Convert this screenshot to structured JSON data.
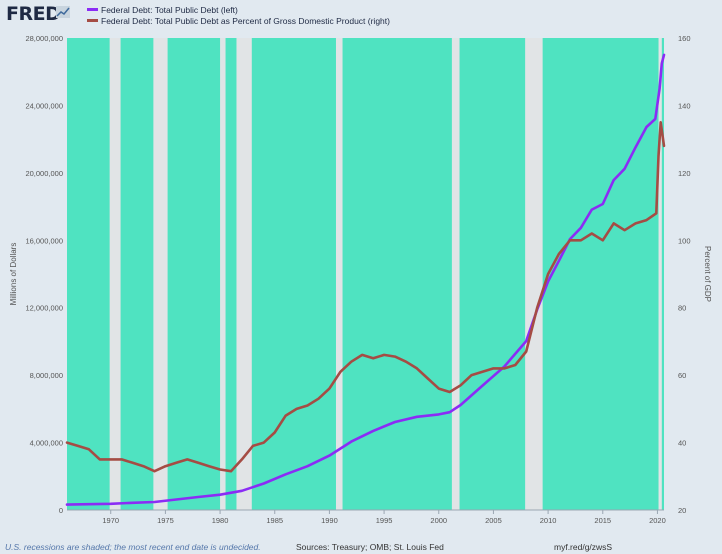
{
  "header": {
    "logo_text": "FRED",
    "logo_icon": "line-chart-icon"
  },
  "chart_data": {
    "type": "line",
    "x_range": [
      1966.0,
      2020.6
    ],
    "x_ticks": [
      1970,
      1975,
      1980,
      1985,
      1990,
      1995,
      2000,
      2005,
      2010,
      2015,
      2020
    ],
    "y_left": {
      "label": "Millions of Dollars",
      "range": [
        0,
        28000000
      ],
      "ticks": [
        0,
        4000000,
        8000000,
        12000000,
        16000000,
        20000000,
        24000000,
        28000000
      ],
      "tick_labels": [
        "0",
        "4,000,000",
        "8,000,000",
        "12,000,000",
        "16,000,000",
        "20,000,000",
        "24,000,000",
        "28,000,000"
      ]
    },
    "y_right": {
      "label": "Percent of GDP",
      "range": [
        20,
        160
      ],
      "ticks": [
        20,
        40,
        60,
        80,
        100,
        120,
        140,
        160
      ]
    },
    "grid": false,
    "legend_position": "top-left",
    "recessions_shaded": true,
    "plot_background": "#4fe3c1",
    "recession_color": "#e1e4e6",
    "recessions": [
      [
        1969.9,
        1970.9
      ],
      [
        1973.9,
        1975.2
      ],
      [
        1980.0,
        1980.5
      ],
      [
        1981.5,
        1982.9
      ],
      [
        1990.6,
        1991.2
      ],
      [
        2001.2,
        2001.9
      ],
      [
        2007.9,
        2009.5
      ],
      [
        2020.1,
        2020.4
      ]
    ],
    "series": [
      {
        "name": "Federal Debt: Total Public Debt (left)",
        "axis": "left",
        "color": "#8b2cf5",
        "points": [
          [
            1966,
            320000
          ],
          [
            1968,
            345000
          ],
          [
            1970,
            370000
          ],
          [
            1972,
            425000
          ],
          [
            1974,
            475000
          ],
          [
            1976,
            620000
          ],
          [
            1978,
            770000
          ],
          [
            1980,
            908000
          ],
          [
            1982,
            1140000
          ],
          [
            1984,
            1570000
          ],
          [
            1986,
            2120000
          ],
          [
            1988,
            2600000
          ],
          [
            1990,
            3230000
          ],
          [
            1992,
            4060000
          ],
          [
            1994,
            4690000
          ],
          [
            1996,
            5220000
          ],
          [
            1998,
            5530000
          ],
          [
            2000,
            5670000
          ],
          [
            2001,
            5800000
          ],
          [
            2002,
            6230000
          ],
          [
            2004,
            7380000
          ],
          [
            2006,
            8510000
          ],
          [
            2008,
            10020000
          ],
          [
            2009,
            11900000
          ],
          [
            2010,
            13560000
          ],
          [
            2011,
            14790000
          ],
          [
            2012,
            16070000
          ],
          [
            2013,
            16740000
          ],
          [
            2014,
            17820000
          ],
          [
            2015,
            18150000
          ],
          [
            2016,
            19570000
          ],
          [
            2017,
            20240000
          ],
          [
            2018,
            21520000
          ],
          [
            2019,
            22720000
          ],
          [
            2019.8,
            23200000
          ],
          [
            2020.2,
            25000000
          ],
          [
            2020.4,
            26500000
          ],
          [
            2020.6,
            27000000
          ]
        ]
      },
      {
        "name": "Federal Debt: Total Public Debt as Percent of Gross Domestic Product (right)",
        "axis": "right",
        "color": "#a54c44",
        "points": [
          [
            1966,
            40
          ],
          [
            1967,
            39
          ],
          [
            1968,
            38
          ],
          [
            1969,
            35
          ],
          [
            1970,
            35
          ],
          [
            1971,
            35
          ],
          [
            1972,
            34
          ],
          [
            1973,
            33
          ],
          [
            1974,
            31.5
          ],
          [
            1975,
            33
          ],
          [
            1976,
            34
          ],
          [
            1977,
            35
          ],
          [
            1978,
            34
          ],
          [
            1979,
            33
          ],
          [
            1980,
            32
          ],
          [
            1981,
            31.5
          ],
          [
            1982,
            35
          ],
          [
            1983,
            39
          ],
          [
            1984,
            40
          ],
          [
            1985,
            43
          ],
          [
            1986,
            48
          ],
          [
            1987,
            50
          ],
          [
            1988,
            51
          ],
          [
            1989,
            53
          ],
          [
            1990,
            56
          ],
          [
            1991,
            61
          ],
          [
            1992,
            64
          ],
          [
            1993,
            66
          ],
          [
            1994,
            65
          ],
          [
            1995,
            66
          ],
          [
            1996,
            65.5
          ],
          [
            1997,
            64
          ],
          [
            1998,
            62
          ],
          [
            1999,
            59
          ],
          [
            2000,
            56
          ],
          [
            2001,
            55
          ],
          [
            2002,
            57
          ],
          [
            2003,
            60
          ],
          [
            2004,
            61
          ],
          [
            2005,
            62
          ],
          [
            2006,
            62
          ],
          [
            2007,
            63
          ],
          [
            2008,
            67
          ],
          [
            2009,
            80
          ],
          [
            2010,
            90
          ],
          [
            2011,
            96
          ],
          [
            2012,
            100
          ],
          [
            2013,
            100
          ],
          [
            2014,
            102
          ],
          [
            2015,
            100
          ],
          [
            2016,
            105
          ],
          [
            2017,
            103
          ],
          [
            2018,
            105
          ],
          [
            2019,
            106
          ],
          [
            2019.9,
            108
          ],
          [
            2020.1,
            125
          ],
          [
            2020.3,
            135
          ],
          [
            2020.6,
            128
          ]
        ]
      }
    ]
  },
  "footer": {
    "note": "U.S. recessions are shaded; the most recent end date is undecided.",
    "sources": "Sources: Treasury; OMB; St. Louis Fed",
    "link": "myf.red/g/zwsS"
  }
}
